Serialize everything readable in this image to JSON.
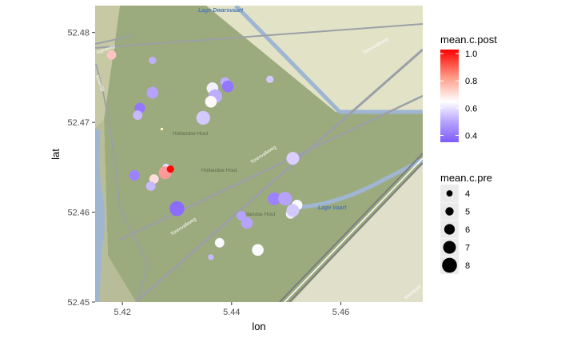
{
  "chart_data": {
    "type": "scatter",
    "xlabel": "lon",
    "ylabel": "lat",
    "xlim": [
      5.415,
      5.475
    ],
    "ylim": [
      52.45,
      52.483
    ],
    "x_ticks": [
      5.42,
      5.44,
      5.46
    ],
    "x_tick_labels": [
      "5.42",
      "5.44",
      "5.46"
    ],
    "y_ticks": [
      52.45,
      52.46,
      52.47,
      52.48
    ],
    "y_tick_labels": [
      "52.45",
      "52.46",
      "52.47",
      "52.48"
    ],
    "grid": false,
    "background": "map tiles",
    "map_labels": [
      "Lage Dwarsvaart",
      "Rijksweg",
      "Knardijk",
      "Hollandse Hout",
      "Hollandse Hout",
      "Hollandse Hout",
      "Torenvalkweg",
      "Torenvalkweg",
      "Torenvalkweg",
      "Lage Vaart",
      "Meerkoet"
    ],
    "color_legend": {
      "title": "mean.c.post",
      "ticks": [
        0.4,
        0.6,
        0.8,
        1.0
      ],
      "tick_labels": [
        "0.4",
        "0.6",
        "0.8",
        "1.0"
      ],
      "range": [
        0.35,
        1.03
      ],
      "low_color": "#7f5cff",
      "mid_color": "#ffffff",
      "mid_value": 0.65,
      "high_color": "#ff0000"
    },
    "size_legend": {
      "title": "mean.c.pre",
      "values": [
        4,
        5,
        6,
        7,
        8
      ],
      "labels": [
        "4",
        "5",
        "6",
        "7",
        "8"
      ],
      "range": [
        3.5,
        8.5
      ],
      "point_color": "#000000"
    },
    "points": [
      {
        "lon": 5.418,
        "lat": 52.4775,
        "post": 0.74,
        "pre": 5.5
      },
      {
        "lon": 5.4255,
        "lat": 52.4769,
        "post": 0.5,
        "pre": 4.5
      },
      {
        "lon": 5.4255,
        "lat": 52.4733,
        "post": 0.48,
        "pre": 6.5
      },
      {
        "lon": 5.4232,
        "lat": 52.4716,
        "post": 0.4,
        "pre": 6.0
      },
      {
        "lon": 5.4228,
        "lat": 52.4708,
        "post": 0.52,
        "pre": 5.5
      },
      {
        "lon": 5.4365,
        "lat": 52.4738,
        "post": 0.62,
        "pre": 6.5
      },
      {
        "lon": 5.437,
        "lat": 52.4729,
        "post": 0.5,
        "pre": 7.5
      },
      {
        "lon": 5.4362,
        "lat": 52.4723,
        "post": 0.66,
        "pre": 6.5
      },
      {
        "lon": 5.4388,
        "lat": 52.4745,
        "post": 0.5,
        "pre": 5.5
      },
      {
        "lon": 5.4393,
        "lat": 52.474,
        "post": 0.4,
        "pre": 6.5
      },
      {
        "lon": 5.4348,
        "lat": 52.4705,
        "post": 0.55,
        "pre": 7.5
      },
      {
        "lon": 5.447,
        "lat": 52.4748,
        "post": 0.55,
        "pre": 4.5
      },
      {
        "lon": 5.4512,
        "lat": 52.466,
        "post": 0.56,
        "pre": 7.0
      },
      {
        "lon": 5.4222,
        "lat": 52.4641,
        "post": 0.42,
        "pre": 6.0
      },
      {
        "lon": 5.428,
        "lat": 52.465,
        "post": 0.58,
        "pre": 4.5
      },
      {
        "lon": 5.4278,
        "lat": 52.4644,
        "post": 0.8,
        "pre": 7.0
      },
      {
        "lon": 5.4288,
        "lat": 52.4648,
        "post": 1.02,
        "pre": 4.5
      },
      {
        "lon": 5.4258,
        "lat": 52.4637,
        "post": 0.7,
        "pre": 5.5
      },
      {
        "lon": 5.4252,
        "lat": 52.4629,
        "post": 0.52,
        "pre": 5.5
      },
      {
        "lon": 5.43,
        "lat": 52.4604,
        "post": 0.38,
        "pre": 8.0
      },
      {
        "lon": 5.4478,
        "lat": 52.4615,
        "post": 0.42,
        "pre": 7.0
      },
      {
        "lon": 5.4498,
        "lat": 52.4615,
        "post": 0.48,
        "pre": 7.5
      },
      {
        "lon": 5.452,
        "lat": 52.4608,
        "post": 0.64,
        "pre": 6.0
      },
      {
        "lon": 5.4508,
        "lat": 52.4598,
        "post": 0.62,
        "pre": 5.5
      },
      {
        "lon": 5.4512,
        "lat": 52.4602,
        "post": 0.55,
        "pre": 7.0
      },
      {
        "lon": 5.4418,
        "lat": 52.4596,
        "post": 0.48,
        "pre": 5.5
      },
      {
        "lon": 5.4428,
        "lat": 52.4588,
        "post": 0.48,
        "pre": 6.5
      },
      {
        "lon": 5.4378,
        "lat": 52.4566,
        "post": 0.64,
        "pre": 5.5
      },
      {
        "lon": 5.4448,
        "lat": 52.4558,
        "post": 0.64,
        "pre": 6.5
      },
      {
        "lon": 5.4362,
        "lat": 52.455,
        "post": 0.52,
        "pre": 3.8
      }
    ]
  }
}
